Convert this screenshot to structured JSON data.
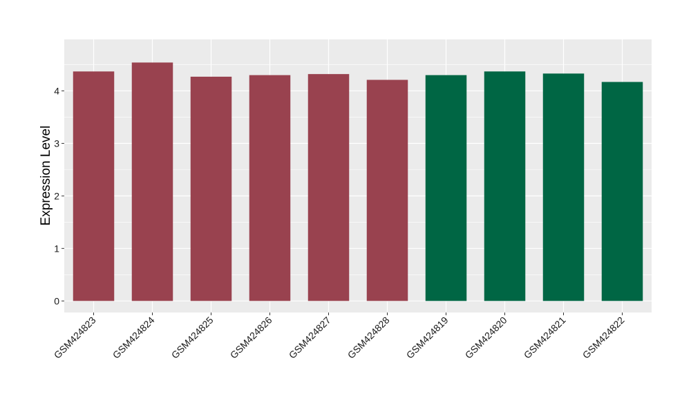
{
  "chart_data": {
    "type": "bar",
    "title": "",
    "xlabel": "",
    "ylabel": "Expression Level",
    "ylim": [
      -0.22,
      4.98
    ],
    "yticks": [
      0,
      1,
      2,
      3,
      4
    ],
    "grid": true,
    "legend": "none",
    "categories": [
      "GSM424823",
      "GSM424824",
      "GSM424825",
      "GSM424826",
      "GSM424827",
      "GSM424828",
      "GSM424819",
      "GSM424820",
      "GSM424821",
      "GSM424822"
    ],
    "values": [
      4.37,
      4.54,
      4.27,
      4.3,
      4.32,
      4.21,
      4.3,
      4.37,
      4.33,
      4.17
    ],
    "colors": [
      "#99424f",
      "#99424f",
      "#99424f",
      "#99424f",
      "#99424f",
      "#99424f",
      "#006644",
      "#006644",
      "#006644",
      "#006644"
    ],
    "panel_background": "#ebebeb",
    "gridline_color": "#ffffff"
  }
}
